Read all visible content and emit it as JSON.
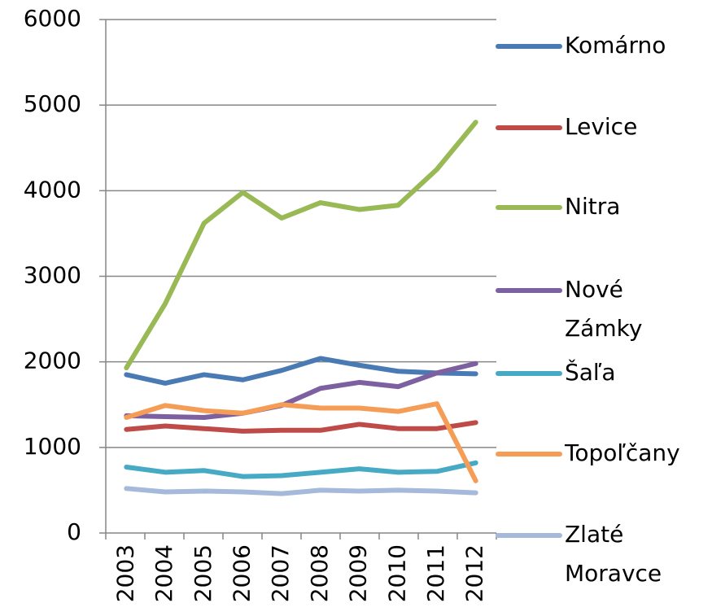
{
  "chart_data": {
    "type": "line",
    "categories": [
      "2003",
      "2004",
      "2005",
      "2006",
      "2007",
      "2008",
      "2009",
      "2010",
      "2011",
      "2012"
    ],
    "series": [
      {
        "name": "Komárno",
        "color": "#4a7ab4",
        "values": [
          1850,
          1750,
          1850,
          1790,
          1900,
          2040,
          1960,
          1890,
          1870,
          1860
        ]
      },
      {
        "name": "Levice",
        "color": "#be4b48",
        "values": [
          1210,
          1250,
          1220,
          1190,
          1200,
          1200,
          1270,
          1220,
          1220,
          1290
        ]
      },
      {
        "name": "Nitra",
        "color": "#98b954",
        "values": [
          1930,
          2680,
          3620,
          3980,
          3680,
          3860,
          3780,
          3830,
          4250,
          4800
        ]
      },
      {
        "name": "Nové Zámky",
        "color": "#7d60a0",
        "values": [
          1370,
          1360,
          1350,
          1400,
          1490,
          1690,
          1760,
          1710,
          1870,
          1980
        ]
      },
      {
        "name": "Šaľa",
        "color": "#46aac4",
        "values": [
          770,
          710,
          730,
          660,
          670,
          710,
          750,
          710,
          720,
          820
        ]
      },
      {
        "name": "Topoľčany",
        "color": "#f59d56",
        "values": [
          1350,
          1490,
          1430,
          1400,
          1500,
          1460,
          1460,
          1420,
          1510,
          610
        ]
      },
      {
        "name": "Zlaté Moravce",
        "color": "#a5b9db",
        "values": [
          520,
          480,
          490,
          480,
          460,
          500,
          490,
          500,
          490,
          470
        ]
      }
    ],
    "ylim": [
      0,
      6000
    ],
    "yticks": [
      0,
      1000,
      2000,
      3000,
      4000,
      5000,
      6000
    ],
    "grid": true,
    "legend": "right"
  }
}
